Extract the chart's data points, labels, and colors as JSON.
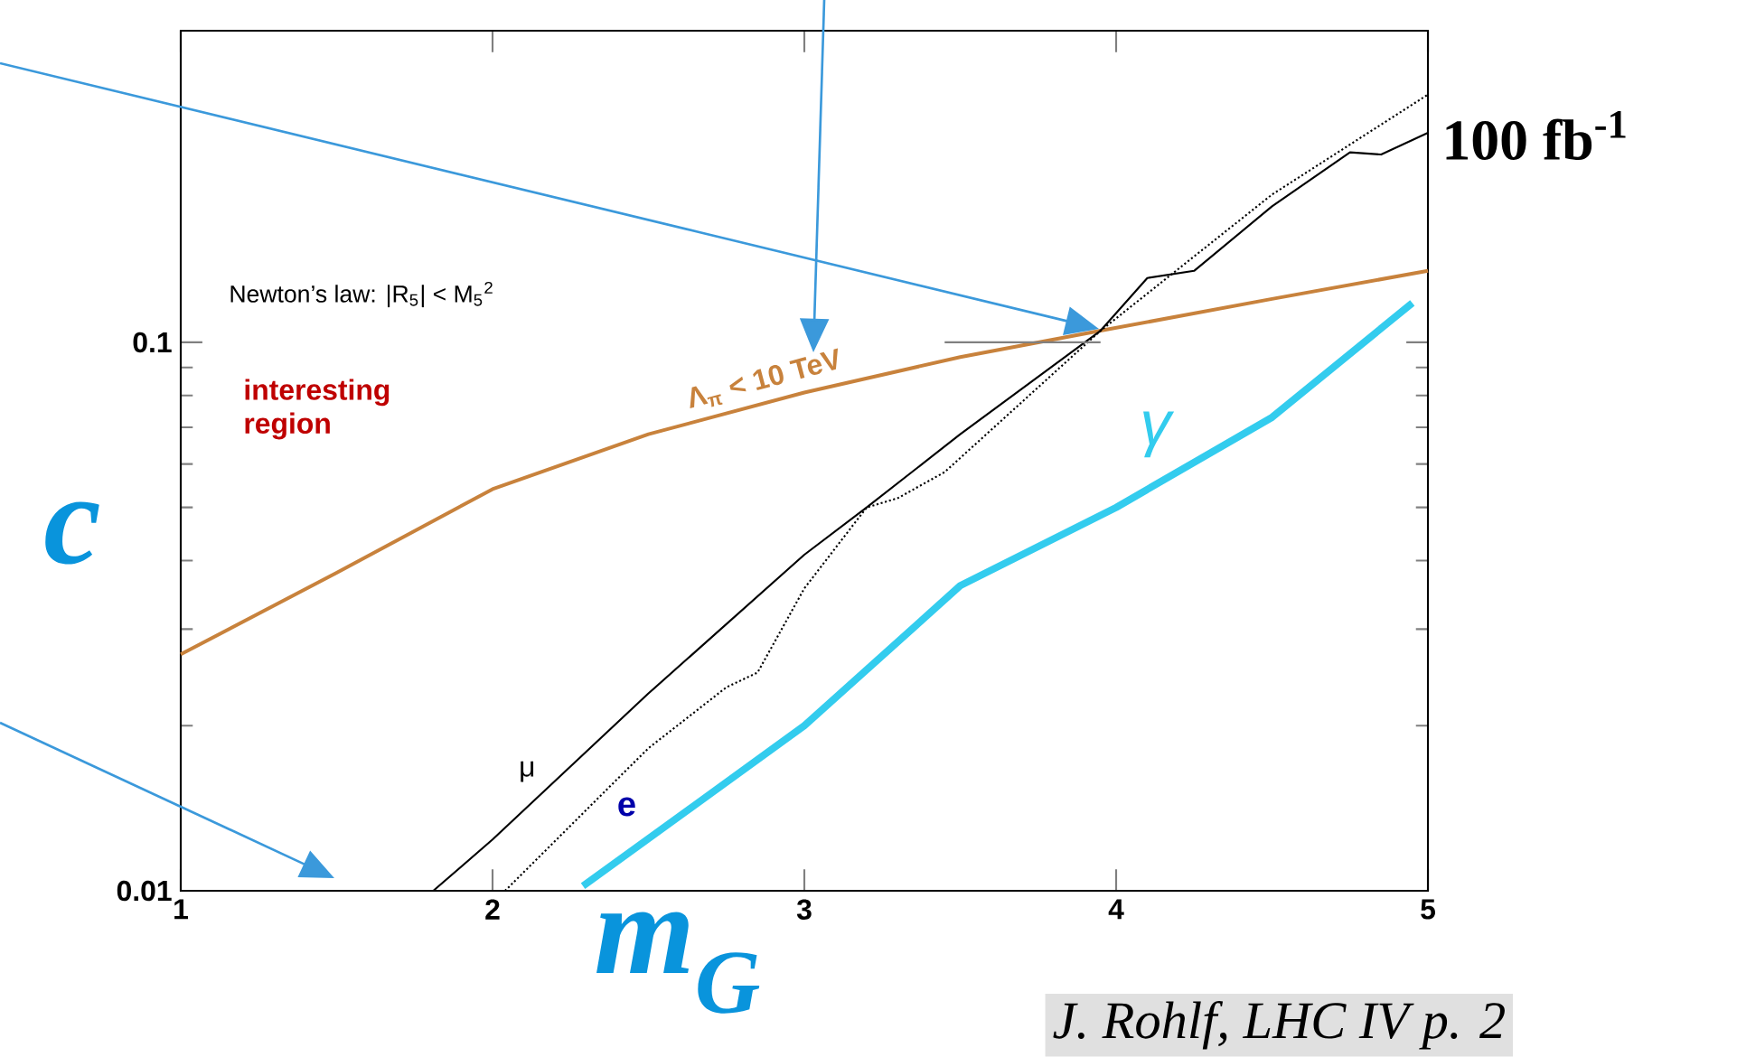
{
  "chart_data": {
    "type": "line",
    "xlabel": "m$_{G}$",
    "ylabel": "c",
    "xlim": [
      1,
      5
    ],
    "ylim": [
      0.01,
      0.37
    ],
    "log": true,
    "xticks": [
      1,
      2,
      3,
      4,
      5
    ],
    "yticks": [
      0.01,
      0.1
    ],
    "grid": false,
    "series": [
      {
        "name": "Λ$_{π}$ < 10 TeV",
        "color": "#c8823c",
        "x": [
          1,
          1.5,
          2,
          2.5,
          3,
          3.5,
          3.95,
          4.5,
          5
        ],
        "values": [
          0.027,
          0.038,
          0.054,
          0.068,
          0.081,
          0.094,
          0.105,
          0.12,
          0.135
        ]
      },
      {
        "name": "μ",
        "color": "#000000",
        "x": [
          1.81,
          2,
          2.5,
          3,
          3.2,
          3.5,
          3.95,
          4.1,
          4.25,
          4.5,
          4.75,
          4.85,
          5
        ],
        "values": [
          0.01,
          0.0124,
          0.0229,
          0.041,
          0.05,
          0.068,
          0.105,
          0.131,
          0.135,
          0.177,
          0.222,
          0.22,
          0.241
        ]
      },
      {
        "name": "e",
        "color": "#000000",
        "line_style": "dotted",
        "x": [
          2.04,
          2.5,
          2.75,
          2.85,
          3,
          3.2,
          3.3,
          3.45,
          3.95,
          4.5,
          5
        ],
        "values": [
          0.01,
          0.0182,
          0.0235,
          0.025,
          0.0356,
          0.05,
          0.052,
          0.058,
          0.105,
          0.186,
          0.283
        ]
      },
      {
        "name": "γ",
        "color": "#33ccee",
        "x": [
          2.29,
          3,
          3.5,
          4,
          4.5,
          4.95
        ],
        "values": [
          0.0102,
          0.02,
          0.036,
          0.05,
          0.073,
          0.118
        ]
      },
      {
        "color": "#808080",
        "x": [
          3.45,
          3.95
        ],
        "values": [
          0.1,
          0.1
        ]
      }
    ],
    "annotations": [
      "Newton’s law: |R$_{5}$| < M$_{5}$$^{2}$",
      "interesting region",
      "100 fb$^{-1}$",
      "J. Rohlf, LHC IV p. 2"
    ]
  }
}
